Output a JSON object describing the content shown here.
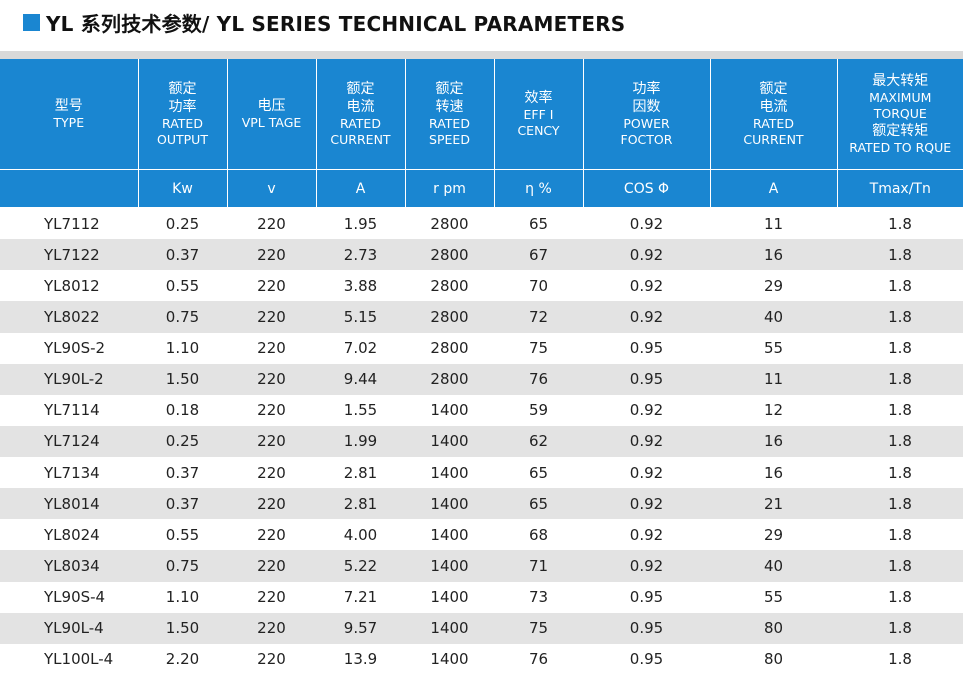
{
  "title": {
    "text": "YL 系列技术参数/ YL SERIES TECHNICAL PARAMETERS",
    "accent_color": "#1a86d1"
  },
  "header": {
    "columns": [
      {
        "cn": "型号",
        "en": [
          "TYPE"
        ],
        "unit": ""
      },
      {
        "cn": "额定\n功率",
        "en": [
          "RATED",
          "OUTPUT"
        ],
        "unit": "Kw"
      },
      {
        "cn": "电压",
        "en": [
          "VPL TAGE"
        ],
        "unit": "v"
      },
      {
        "cn": "额定\n电流",
        "en": [
          "RATED",
          "CURRENT"
        ],
        "unit": "A"
      },
      {
        "cn": "额定\n转速",
        "en": [
          "RATED",
          "SPEED"
        ],
        "unit": "r pm"
      },
      {
        "cn": "效率",
        "en": [
          "EFF I",
          "CENCY"
        ],
        "unit": "η %"
      },
      {
        "cn": "功率\n因数",
        "en": [
          "POWER",
          "FOCTOR"
        ],
        "unit": "COS Φ"
      },
      {
        "cn": "额定\n电流",
        "en": [
          "RATED",
          "CURRENT"
        ],
        "unit": "A"
      },
      {
        "cn": "最大转矩",
        "en": [
          "MAXIMUM",
          "TORQUE"
        ],
        "cn2": "额定转矩",
        "en2": "RATED TO RQUE",
        "unit": "Tmax/Tn"
      }
    ],
    "header_color": "#1a86d1"
  },
  "rows": [
    [
      "YL7112",
      "0.25",
      "220",
      "1.95",
      "2800",
      "65",
      "0.92",
      "11",
      "1.8"
    ],
    [
      "YL7122",
      "0.37",
      "220",
      "2.73",
      "2800",
      "67",
      "0.92",
      "16",
      "1.8"
    ],
    [
      "YL8012",
      "0.55",
      "220",
      "3.88",
      "2800",
      "70",
      "0.92",
      "29",
      "1.8"
    ],
    [
      "YL8022",
      "0.75",
      "220",
      "5.15",
      "2800",
      "72",
      "0.92",
      "40",
      "1.8"
    ],
    [
      "YL90S-2",
      "1.10",
      "220",
      "7.02",
      "2800",
      "75",
      "0.95",
      "55",
      "1.8"
    ],
    [
      "YL90L-2",
      "1.50",
      "220",
      "9.44",
      "2800",
      "76",
      "0.95",
      "11",
      "1.8"
    ],
    [
      "YL7114",
      "0.18",
      "220",
      "1.55",
      "1400",
      "59",
      "0.92",
      "12",
      "1.8"
    ],
    [
      "YL7124",
      "0.25",
      "220",
      "1.99",
      "1400",
      "62",
      "0.92",
      "16",
      "1.8"
    ],
    [
      "YL7134",
      "0.37",
      "220",
      "2.81",
      "1400",
      "65",
      "0.92",
      "16",
      "1.8"
    ],
    [
      "YL8014",
      "0.37",
      "220",
      "2.81",
      "1400",
      "65",
      "0.92",
      "21",
      "1.8"
    ],
    [
      "YL8024",
      "0.55",
      "220",
      "4.00",
      "1400",
      "68",
      "0.92",
      "29",
      "1.8"
    ],
    [
      "YL8034",
      "0.75",
      "220",
      "5.22",
      "1400",
      "71",
      "0.92",
      "40",
      "1.8"
    ],
    [
      "YL90S-4",
      "1.10",
      "220",
      "7.21",
      "1400",
      "73",
      "0.95",
      "55",
      "1.8"
    ],
    [
      "YL90L-4",
      "1.50",
      "220",
      "9.57",
      "1400",
      "75",
      "0.95",
      "80",
      "1.8"
    ],
    [
      "YL100L-4",
      "2.20",
      "220",
      "13.9",
      "1400",
      "76",
      "0.95",
      "80",
      "1.8"
    ]
  ]
}
